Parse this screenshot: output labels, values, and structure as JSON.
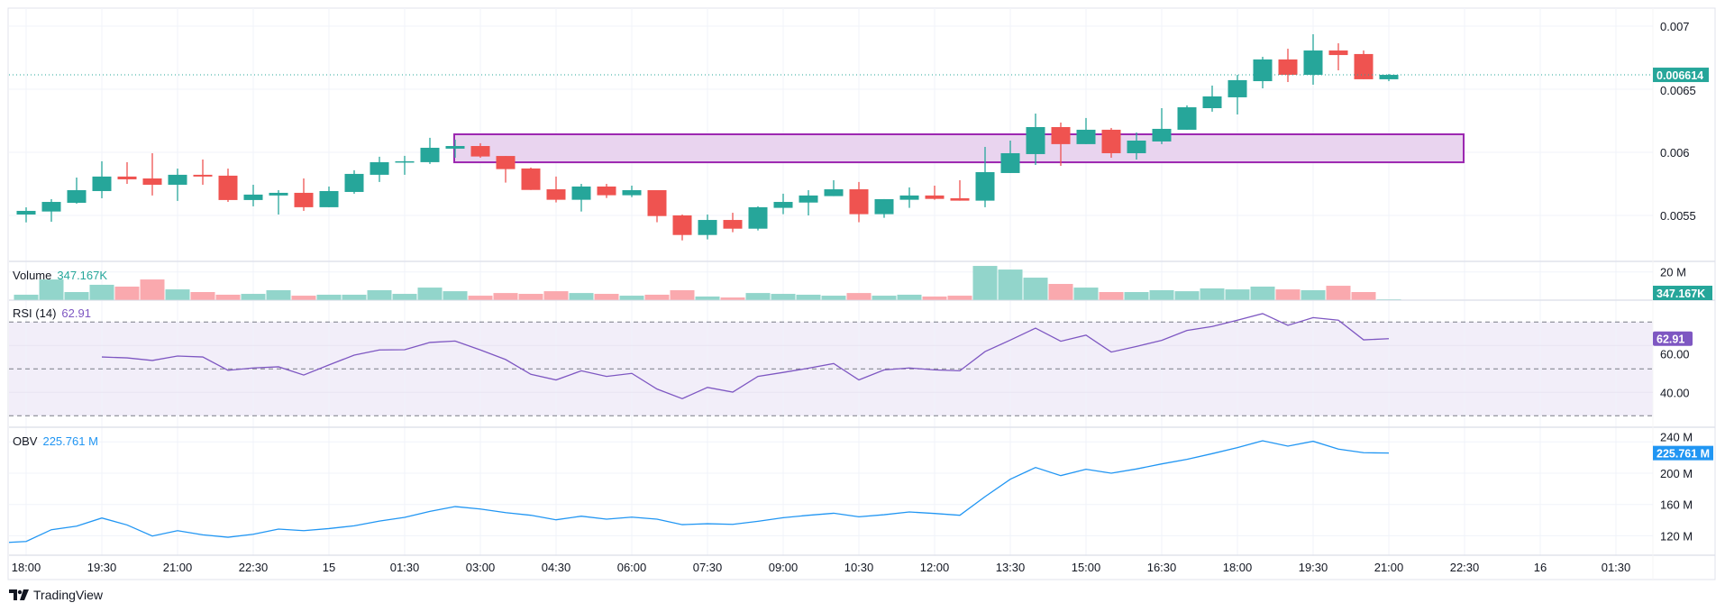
{
  "chart_data": {
    "type": "candlestick",
    "interval": "30m",
    "colors": {
      "up": "#26a69a",
      "down": "#ef5350",
      "up_volume": "#92d5cb",
      "down_volume": "#faa9ae",
      "rsi": "#7e57c2",
      "obv": "#2196f3",
      "zone_fill": "#e9d4ef",
      "zone_stroke": "#9c27b0",
      "rsi_band": "#f2eef9"
    },
    "x_tick_labels": [
      "18:00",
      "19:30",
      "21:00",
      "22:30",
      "15",
      "01:30",
      "03:00",
      "04:30",
      "06:00",
      "07:30",
      "09:00",
      "10:30",
      "12:00",
      "13:30",
      "15:00",
      "16:30",
      "18:00",
      "19:30",
      "21:00",
      "22:30",
      "16",
      "01:30"
    ],
    "price": {
      "ticks": [
        "0.007",
        "0.0065",
        "0.006",
        "0.0055"
      ],
      "tick_values": [
        0.007,
        0.0065,
        0.006,
        0.0055
      ],
      "last_price": "0.006614",
      "ohlc": [
        [
          0.005507,
          0.005564,
          0.005445,
          0.005536
        ],
        [
          0.005531,
          0.005629,
          0.00545,
          0.005607
        ],
        [
          0.0056,
          0.0058,
          0.005593,
          0.0057
        ],
        [
          0.005693,
          0.005929,
          0.005636,
          0.005808
        ],
        [
          0.005808,
          0.005922,
          0.00575,
          0.005786
        ],
        [
          0.005793,
          0.005993,
          0.005658,
          0.005743
        ],
        [
          0.005743,
          0.005871,
          0.005615,
          0.005822
        ],
        [
          0.005822,
          0.005943,
          0.005743,
          0.005808
        ],
        [
          0.005815,
          0.005871,
          0.005607,
          0.005622
        ],
        [
          0.005622,
          0.005743,
          0.005572,
          0.005665
        ],
        [
          0.005658,
          0.0057,
          0.005507,
          0.005679
        ],
        [
          0.005679,
          0.005793,
          0.005536,
          0.005565
        ],
        [
          0.005565,
          0.005729,
          0.005565,
          0.005693
        ],
        [
          0.005686,
          0.005858,
          0.005672,
          0.005829
        ],
        [
          0.005822,
          0.005965,
          0.005765,
          0.005922
        ],
        [
          0.005922,
          0.005972,
          0.005822,
          0.005929
        ],
        [
          0.005922,
          0.006115,
          0.005908,
          0.006036
        ],
        [
          0.006029,
          0.0061,
          0.005957,
          0.00605
        ],
        [
          0.00605,
          0.006072,
          0.005957,
          0.005967
        ],
        [
          0.005971,
          0.005971,
          0.00576,
          0.005867
        ],
        [
          0.005872,
          0.005879,
          0.005702,
          0.005702
        ],
        [
          0.005707,
          0.005808,
          0.005603,
          0.005624
        ],
        [
          0.005624,
          0.00575,
          0.005531,
          0.005729
        ],
        [
          0.005729,
          0.00575,
          0.005638,
          0.00566
        ],
        [
          0.00566,
          0.005736,
          0.005645,
          0.0057
        ],
        [
          0.0057,
          0.0057,
          0.005446,
          0.005495
        ],
        [
          0.0055,
          0.005507,
          0.005302,
          0.005345
        ],
        [
          0.005345,
          0.005507,
          0.00531,
          0.005464
        ],
        [
          0.005464,
          0.005521,
          0.005367,
          0.005395
        ],
        [
          0.005395,
          0.005572,
          0.005381,
          0.005565
        ],
        [
          0.00556,
          0.005672,
          0.00551,
          0.005607
        ],
        [
          0.005602,
          0.0057,
          0.0055,
          0.005658
        ],
        [
          0.005653,
          0.005779,
          0.005653,
          0.005707
        ],
        [
          0.005707,
          0.005765,
          0.005446,
          0.00551
        ],
        [
          0.00551,
          0.005629,
          0.005481,
          0.005629
        ],
        [
          0.005624,
          0.005722,
          0.00556,
          0.005658
        ],
        [
          0.005658,
          0.005736,
          0.005624,
          0.005631
        ],
        [
          0.005636,
          0.005779,
          0.005617,
          0.005617
        ],
        [
          0.005617,
          0.006043,
          0.005565,
          0.005843
        ],
        [
          0.005836,
          0.006093,
          0.005836,
          0.005993
        ],
        [
          0.005986,
          0.006307,
          0.0059,
          0.0062
        ],
        [
          0.0062,
          0.006236,
          0.005893,
          0.006065
        ],
        [
          0.006065,
          0.006272,
          0.006065,
          0.006179
        ],
        [
          0.006179,
          0.006193,
          0.005957,
          0.005993
        ],
        [
          0.005993,
          0.006157,
          0.005943,
          0.006093
        ],
        [
          0.006086,
          0.00635,
          0.006065,
          0.006186
        ],
        [
          0.006179,
          0.006372,
          0.006179,
          0.006357
        ],
        [
          0.00635,
          0.006529,
          0.006322,
          0.006443
        ],
        [
          0.006436,
          0.006614,
          0.0063,
          0.006572
        ],
        [
          0.006564,
          0.006757,
          0.006507,
          0.006736
        ],
        [
          0.006736,
          0.006821,
          0.006557,
          0.006614
        ],
        [
          0.006614,
          0.006936,
          0.006536,
          0.006807
        ],
        [
          0.006807,
          0.006864,
          0.00665,
          0.006771
        ],
        [
          0.006779,
          0.006807,
          0.006579,
          0.006579
        ],
        [
          0.006579,
          0.006621,
          0.006564,
          0.006614
        ]
      ],
      "zone": {
        "top": 0.006143,
        "bottom": 0.005921,
        "start": "02:30",
        "end": "22:30"
      }
    },
    "volume": {
      "label": "Volume",
      "value_label": "347.167K",
      "axis_tick": "20 M",
      "unit": "M",
      "values": [
        3.7,
        14.6,
        5.6,
        10.8,
        9.5,
        14.6,
        7.5,
        5.6,
        3.7,
        4.3,
        6.9,
        3.0,
        3.7,
        3.7,
        6.9,
        4.3,
        8.8,
        6.2,
        3.0,
        4.9,
        4.3,
        6.2,
        4.9,
        4.3,
        3.0,
        3.7,
        6.9,
        2.4,
        1.7,
        4.9,
        4.3,
        3.7,
        3.0,
        4.9,
        3.0,
        3.7,
        2.4,
        3.0,
        24.3,
        21.7,
        15.9,
        11.4,
        8.8,
        5.6,
        5.6,
        6.9,
        6.2,
        8.2,
        7.5,
        9.5,
        7.5,
        6.9,
        10.1,
        5.6,
        0.347
      ]
    },
    "rsi": {
      "label": "RSI (14)",
      "value_label": "62.91",
      "axis_ticks": [
        "60.00",
        "40.00"
      ],
      "levels": [
        70,
        50,
        30
      ],
      "first_index": 3,
      "values": [
        55.1,
        54.7,
        53.6,
        55.5,
        55.1,
        49.4,
        50.4,
        50.9,
        47.4,
        51.7,
        55.9,
        58.1,
        58.2,
        61.3,
        61.9,
        58.1,
        54.0,
        47.7,
        45.3,
        49.2,
        46.8,
        48.1,
        41.4,
        37.3,
        42.1,
        40.1,
        46.8,
        48.5,
        50.3,
        52.3,
        45.3,
        49.6,
        50.4,
        49.6,
        49.2,
        57.4,
        62.3,
        67.4,
        61.8,
        64.4,
        57.2,
        59.6,
        62.2,
        66.4,
        68.1,
        70.8,
        73.6,
        68.6,
        71.9,
        70.8,
        62.4,
        62.91
      ]
    },
    "obv": {
      "label": "OBV",
      "value_label": "225.761 M",
      "axis_ticks": [
        "240 M",
        "200 M",
        "160 M",
        "120 M"
      ],
      "tick_values": [
        240,
        200,
        160,
        120
      ],
      "unit": "M",
      "values": [
        112.7,
        127.7,
        132.3,
        142.7,
        133.8,
        119.6,
        126.5,
        121.2,
        118.1,
        121.9,
        128.5,
        126.5,
        129.2,
        132.7,
        138.8,
        143.5,
        151.2,
        157.3,
        154.2,
        149.6,
        146.2,
        140.4,
        145.0,
        141.2,
        143.8,
        141.2,
        134.2,
        135.4,
        134.6,
        138.5,
        143.1,
        146.2,
        148.8,
        144.2,
        146.9,
        150.4,
        148.5,
        146.2,
        170.0,
        192.3,
        207.3,
        196.9,
        205.0,
        200.0,
        205.4,
        211.9,
        217.7,
        225.0,
        232.7,
        241.5,
        234.6,
        240.8,
        230.8,
        226.2,
        225.761
      ]
    }
  },
  "brand": {
    "name": "TradingView"
  }
}
